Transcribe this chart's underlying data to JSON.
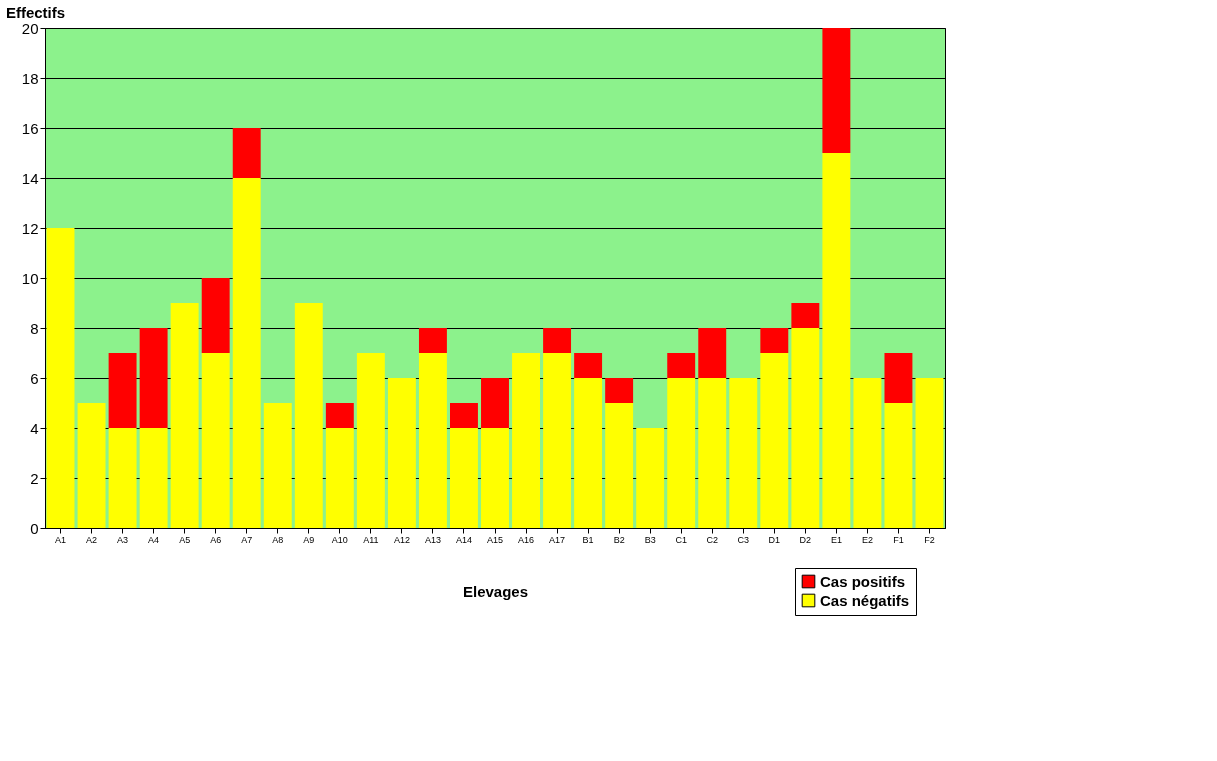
{
  "chart_data": {
    "type": "bar",
    "stacked": true,
    "xlabel": "Elevages",
    "ylabel": "Effectifs",
    "categories": [
      "A1",
      "A2",
      "A3",
      "A4",
      "A5",
      "A6",
      "A7",
      "A8",
      "A9",
      "A10",
      "A11",
      "A12",
      "A13",
      "A14",
      "A15",
      "A16",
      "A17",
      "B1",
      "B2",
      "B3",
      "C1",
      "C2",
      "C3",
      "D1",
      "D2",
      "E1",
      "E2",
      "F1",
      "F2"
    ],
    "series": [
      {
        "name": "Cas négatifs",
        "color": "#ffff00",
        "values": [
          12,
          5,
          4,
          4,
          9,
          7,
          14,
          5,
          9,
          4,
          7,
          6,
          7,
          4,
          4,
          7,
          7,
          6,
          5,
          4,
          6,
          6,
          6,
          7,
          8,
          15,
          6,
          5,
          6
        ]
      },
      {
        "name": "Cas positifs",
        "color": "#ff0000",
        "values": [
          0,
          0,
          3,
          4,
          0,
          3,
          2,
          0,
          0,
          1,
          0,
          0,
          1,
          1,
          2,
          0,
          1,
          1,
          1,
          0,
          1,
          2,
          0,
          1,
          1,
          5,
          0,
          2,
          0
        ]
      }
    ],
    "ylim": [
      0,
      20
    ],
    "yticks": [
      0,
      2,
      4,
      6,
      8,
      10,
      12,
      14,
      16,
      18,
      20
    ],
    "grid": "y",
    "legend": "bottom right"
  }
}
